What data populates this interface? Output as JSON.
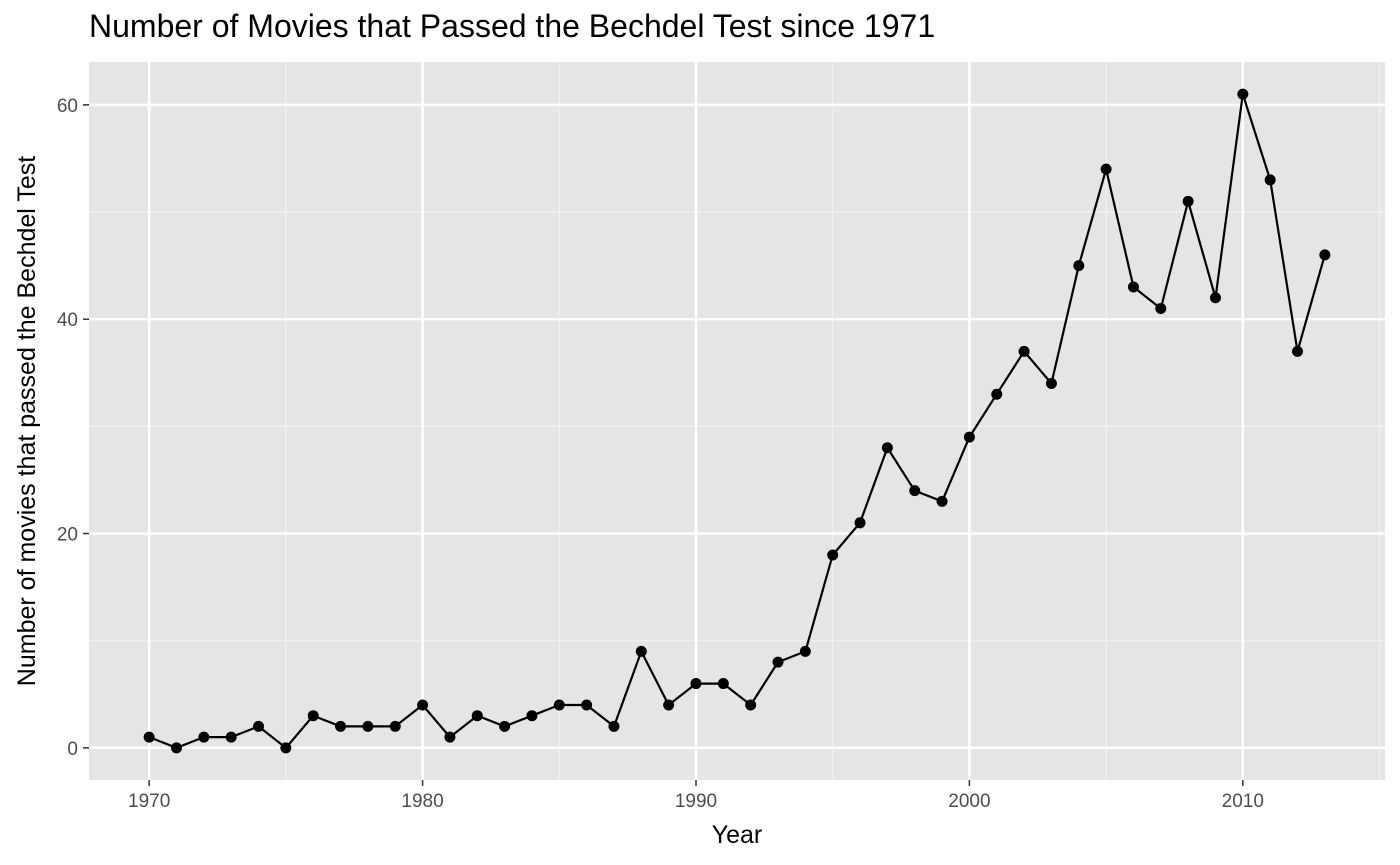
{
  "chart_data": {
    "type": "line",
    "title": "Number of Movies that Passed the Bechdel Test since 1971",
    "xlabel": "Year",
    "ylabel": "Number of movies that passed the Bechdel Test",
    "xlim": [
      1967.8,
      2015.2
    ],
    "ylim": [
      -3,
      64
    ],
    "x_ticks": [
      1970,
      1980,
      1990,
      2000,
      2010
    ],
    "y_ticks": [
      0,
      20,
      40,
      60
    ],
    "grid": true,
    "legend": "none",
    "colors": {
      "panel_bg": "#e5e5e5",
      "grid_major": "#ffffff",
      "grid_minor": "#f2f2f2",
      "line": "#000000",
      "tick_mark": "#333333"
    },
    "series": [
      {
        "x": [
          1970,
          1971,
          1972,
          1973,
          1974,
          1975,
          1976,
          1977,
          1978,
          1979,
          1980,
          1981,
          1982,
          1983,
          1984,
          1985,
          1986,
          1987,
          1988,
          1989,
          1990,
          1991,
          1992,
          1993,
          1994,
          1995,
          1996,
          1997,
          1998,
          1999,
          2000,
          2001,
          2002,
          2003,
          2004,
          2005,
          2006,
          2007,
          2008,
          2009,
          2010,
          2011,
          2012,
          2013
        ],
        "y": [
          1,
          0,
          1,
          1,
          2,
          0,
          3,
          2,
          2,
          2,
          4,
          1,
          3,
          2,
          3,
          4,
          4,
          2,
          9,
          4,
          6,
          6,
          4,
          8,
          9,
          18,
          21,
          28,
          24,
          23,
          29,
          33,
          37,
          34,
          45,
          54,
          43,
          41,
          51,
          42,
          61,
          53,
          37,
          46
        ]
      }
    ]
  }
}
